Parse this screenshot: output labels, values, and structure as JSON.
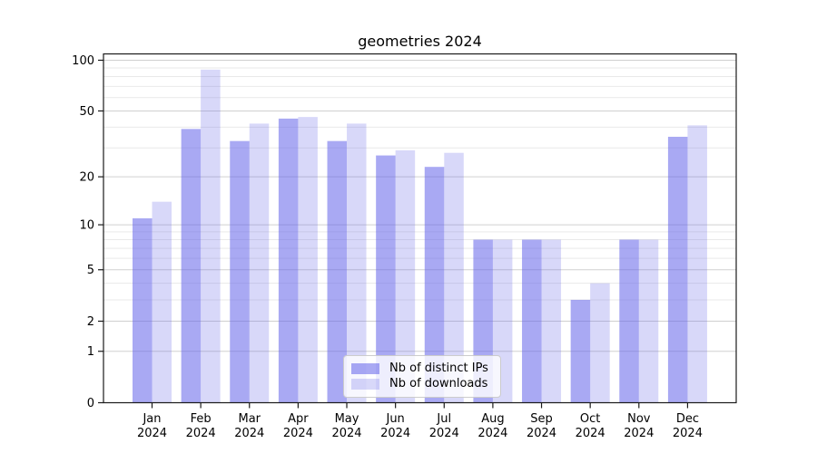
{
  "chart_data": {
    "type": "bar",
    "title": "geometries 2024",
    "categories": [
      "Jan",
      "Feb",
      "Mar",
      "Apr",
      "May",
      "Jun",
      "Jul",
      "Aug",
      "Sep",
      "Oct",
      "Nov",
      "Dec"
    ],
    "year_label": "2024",
    "series": [
      {
        "name": "Nb of distinct IPs",
        "color": "rgba(98,98,233,0.55)",
        "values": [
          11,
          39,
          33,
          45,
          33,
          27,
          23,
          8,
          8,
          3,
          8,
          35
        ]
      },
      {
        "name": "Nb of downloads",
        "color": "rgba(98,98,233,0.25)",
        "values": [
          14,
          88,
          42,
          46,
          42,
          29,
          28,
          8,
          8,
          4,
          8,
          41
        ]
      }
    ],
    "scale": "log1p",
    "yticks": [
      0,
      1,
      2,
      5,
      10,
      20,
      50,
      100
    ],
    "minor_gridlines": [
      3,
      4,
      6,
      7,
      8,
      9,
      30,
      40,
      60,
      70,
      80,
      90
    ],
    "ylim": [
      0,
      109
    ],
    "xlabel": "",
    "ylabel": "",
    "grid": true,
    "legend_position": "lower center"
  },
  "style": {
    "major_grid_color": "#d0d0d0",
    "minor_grid_color": "#e9e9e9",
    "spine_color": "#1a1a1a",
    "background": "#ffffff"
  }
}
